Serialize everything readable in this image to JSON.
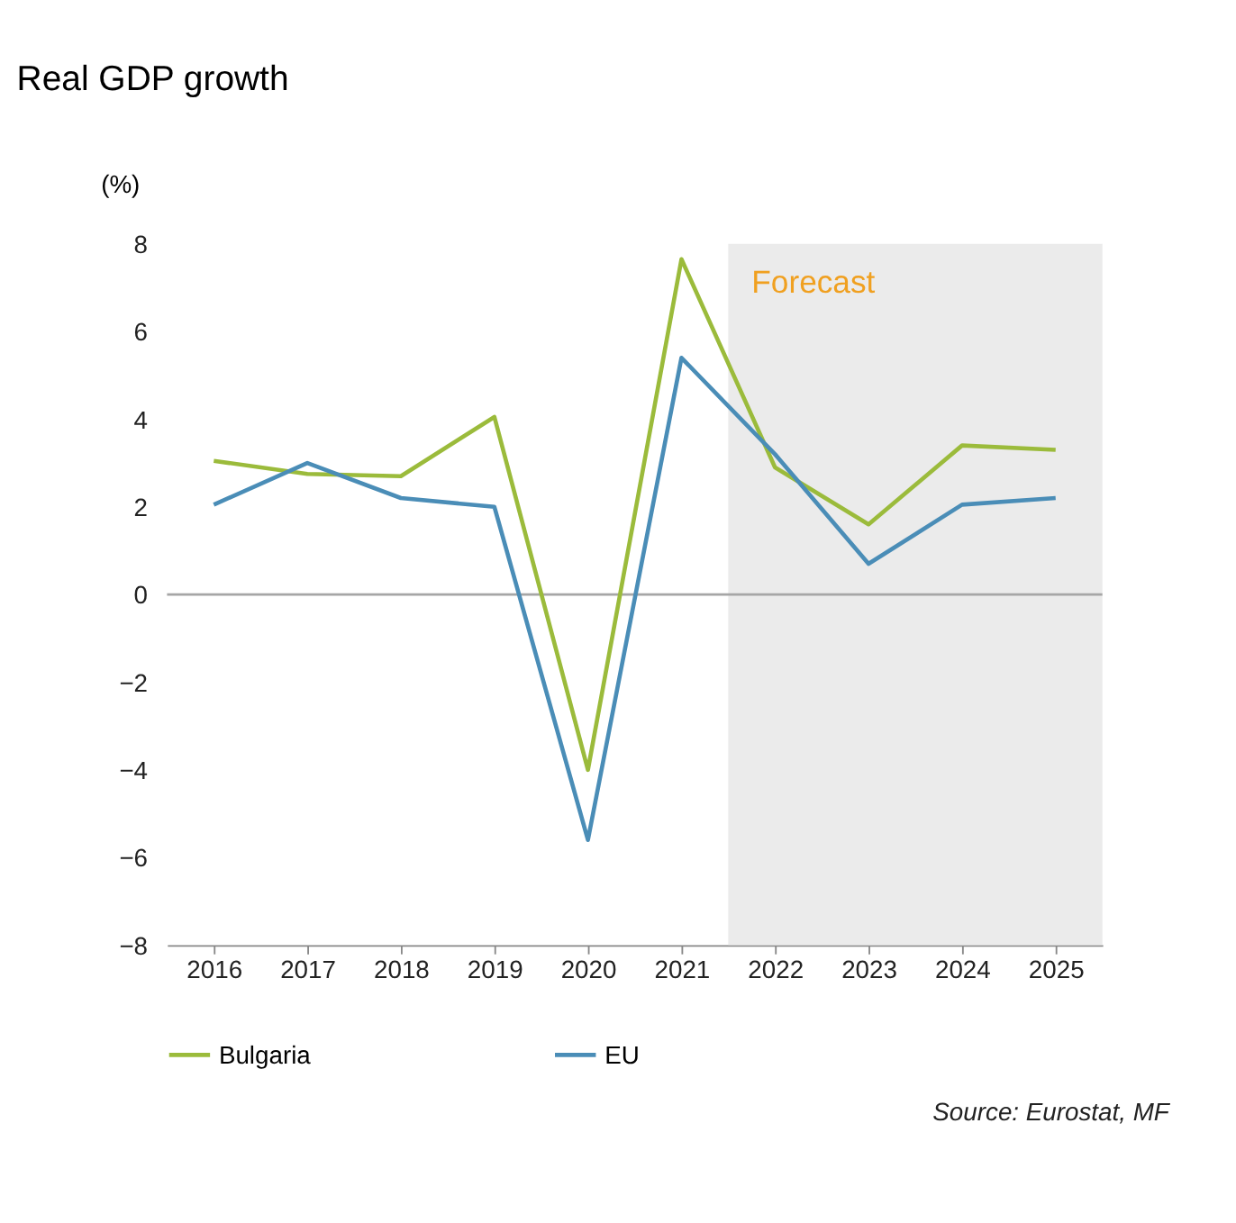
{
  "chart_data": {
    "type": "line",
    "title": "Real GDP growth",
    "ylabel": "(%)",
    "x": [
      2016,
      2017,
      2018,
      2019,
      2020,
      2021,
      2022,
      2023,
      2024,
      2025
    ],
    "xlim": [
      2015.5,
      2025.5
    ],
    "xticks": [
      2016,
      2017,
      2018,
      2019,
      2020,
      2021,
      2022,
      2023,
      2024,
      2025
    ],
    "ylim": [
      -8,
      8
    ],
    "yticks": [
      -8,
      -6,
      -4,
      -2,
      0,
      2,
      4,
      6,
      8
    ],
    "series": [
      {
        "name": "Bulgaria",
        "color": "#9bbb3b",
        "values": [
          3.05,
          2.75,
          2.7,
          4.05,
          -4.0,
          7.65,
          2.9,
          1.6,
          3.4,
          3.3
        ]
      },
      {
        "name": "EU",
        "color": "#4a8db7",
        "values": [
          2.05,
          3.0,
          2.2,
          2.0,
          -5.6,
          5.4,
          3.2,
          0.7,
          2.05,
          2.2
        ]
      }
    ],
    "bands": [
      {
        "axis": "x",
        "from": 2021.5,
        "to": 2025.5,
        "label": "Forecast",
        "color": "#e6e6e6"
      }
    ],
    "ref_lines": [
      {
        "axis": "y",
        "value": 0,
        "color": "#a6a6a6"
      }
    ],
    "annotations": [
      "Source: Eurostat, MF"
    ],
    "grid": false,
    "legend": "bottom",
    "marker": "none",
    "line_style": "solid"
  }
}
